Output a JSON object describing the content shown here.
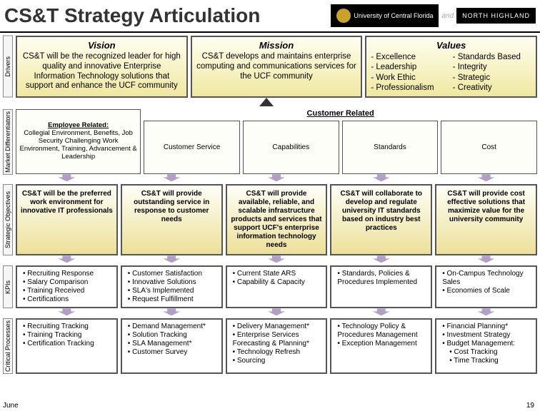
{
  "title": "CS&T Strategy Articulation",
  "logos": {
    "ucf": "University of Central Florida",
    "and": "and",
    "nh": "NORTH HIGHLAND"
  },
  "drivers": {
    "label": "Drivers",
    "vision": {
      "heading": "Vision",
      "body": "CS&T will be the recognized leader for high quality and innovative Enterprise Information Technology solutions that support and enhance the UCF community"
    },
    "mission": {
      "heading": "Mission",
      "body": "CS&T develops and maintains enterprise computing and communications services for the UCF community"
    },
    "values": {
      "heading": "Values",
      "items": [
        "- Excellence",
        "- Leadership",
        "- Work Ethic",
        "- Professionalism",
        "- Standards Based",
        "- Integrity",
        "- Strategic",
        "- Creativity"
      ]
    }
  },
  "md": {
    "label": "Market Differentiators",
    "emp_heading": "Employee Related:",
    "emp_body": "Collegial Environment, Benefits, Job Security Challenging Work Environment, Training, Advancement & Leadership",
    "cust_heading": "Customer Related",
    "cols": [
      "Customer Service",
      "Capabilities",
      "Standards",
      "Cost"
    ]
  },
  "so": {
    "label": "Strategic Objectives",
    "items": [
      "CS&T will be the preferred work environment for innovative IT professionals",
      "CS&T will provide outstanding service in response to customer needs",
      "CS&T will provide available, reliable, and scalable infrastructure products and services that support UCF's enterprise information technology needs",
      "CS&T will collaborate to develop and regulate university IT standards based on industry best practices",
      "CS&T will provide cost effective solutions that maximize value for the university community"
    ]
  },
  "kpi": {
    "label": "KPIs",
    "cols": [
      [
        "Recruiting Response",
        "Salary Comparison",
        "Training Received",
        "Certifications"
      ],
      [
        "Customer Satisfaction",
        "Innovative Solutions",
        "SLA's Implemented",
        "Request Fulfillment"
      ],
      [
        "Current State ARS",
        "Capability & Capacity"
      ],
      [
        "Standards, Policies & Procedures Implemented"
      ],
      [
        "On-Campus Technology Sales",
        "Economies of Scale"
      ]
    ]
  },
  "cp": {
    "label": "Critical Processes",
    "cols": [
      {
        "items": [
          "Recruiting Tracking",
          "Training Tracking",
          "Certification Tracking"
        ]
      },
      {
        "items": [
          "Demand Management*",
          "Solution Tracking",
          "SLA Management*",
          "Customer Survey"
        ]
      },
      {
        "items": [
          "Delivery Management*",
          "Enterprise Services Forecasting & Planning*",
          "Technology Refresh",
          "Sourcing"
        ]
      },
      {
        "items": [
          "Technology Policy & Procedures Management",
          "Exception Management"
        ]
      },
      {
        "items": [
          "Financial Planning*",
          "Investment Strategy",
          "Budget Management:"
        ],
        "subs": [
          "Cost Tracking",
          "Time Tracking"
        ]
      }
    ]
  },
  "page_num": "19",
  "date": "June",
  "colors": {
    "box_grad_top": "#fefef0",
    "box_grad_bot": "#f0e8a0",
    "arrow": "#b0a0c8"
  }
}
